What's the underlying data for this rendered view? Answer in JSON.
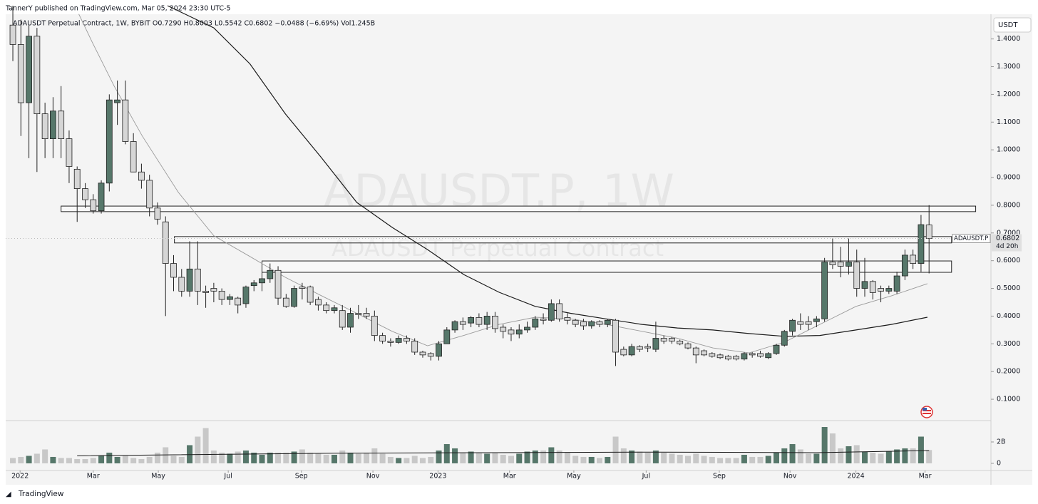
{
  "chart_data": {
    "type": "candlestick",
    "header": "TannerY published on TradingView.com, Mar 05, 2024 23:30 UTC-5",
    "legend_text": "ADAUSDT Perpetual Contract, 1W, BYBIT  O0.7290  H0.8003  L0.5542  C0.6802  −0.0488 (−6.69%)  Vol1.245B",
    "watermark": "ADAUSDT.P, 1W",
    "watermark_subtitle": "ADAUSDT Perpetual Contract",
    "currency": "USDT",
    "symbol_label": "ADAUSDT.P",
    "last_price_label": "0.6802",
    "countdown": "4d 20h",
    "footer": "TradingView",
    "up_color": "#56776a",
    "down_color": "#d6d6d6",
    "xlim": [
      -0.89,
      121.7
    ],
    "xticks": [
      {
        "value": 0.9,
        "label": "2022"
      },
      {
        "value": 10.0,
        "label": "Mar"
      },
      {
        "value": 18.1,
        "label": "May"
      },
      {
        "value": 26.8,
        "label": "Jul"
      },
      {
        "value": 35.9,
        "label": "Sep"
      },
      {
        "value": 44.8,
        "label": "Nov"
      },
      {
        "value": 52.9,
        "label": "2023"
      },
      {
        "value": 61.8,
        "label": "Mar"
      },
      {
        "value": 69.8,
        "label": "May"
      },
      {
        "value": 78.8,
        "label": "Jul"
      },
      {
        "value": 87.9,
        "label": "Sep"
      },
      {
        "value": 96.7,
        "label": "Nov"
      },
      {
        "value": 104.9,
        "label": "2024"
      },
      {
        "value": 113.5,
        "label": "Mar"
      }
    ],
    "ylim": [
      0.023,
      1.52
    ],
    "yticks": [
      {
        "value": 0.1,
        "label": "0.1000"
      },
      {
        "value": 0.2,
        "label": "0.2000"
      },
      {
        "value": 0.3,
        "label": "0.3000"
      },
      {
        "value": 0.4,
        "label": "0.4000"
      },
      {
        "value": 0.5,
        "label": "0.5000"
      },
      {
        "value": 0.6,
        "label": "0.6000"
      },
      {
        "value": 0.7,
        "label": "0.7000"
      },
      {
        "value": 0.8,
        "label": "0.8000"
      },
      {
        "value": 0.9,
        "label": "0.9000"
      },
      {
        "value": 1.0,
        "label": "1.0000"
      },
      {
        "value": 1.1,
        "label": "1.1000"
      },
      {
        "value": 1.2,
        "label": "1.2000"
      },
      {
        "value": 1.3,
        "label": "1.3000"
      },
      {
        "value": 1.4,
        "label": "1.4000"
      }
    ],
    "vlim": [
      -0.67,
      4
    ],
    "vticks": [
      0,
      {
        "value": 2,
        "label": "2B"
      }
    ],
    "open": [
      1.45,
      1.38,
      1.17,
      1.41,
      1.13,
      1.04,
      1.14,
      1.04,
      0.93,
      0.86,
      0.82,
      0.78,
      0.88,
      1.17,
      1.18,
      1.03,
      0.92,
      0.89,
      0.79,
      0.74,
      0.59,
      0.54,
      0.49,
      0.57,
      0.49,
      0.5,
      0.49,
      0.46,
      0.465,
      0.445,
      0.51,
      0.52,
      0.535,
      0.565,
      0.465,
      0.435,
      0.505,
      0.505,
      0.46,
      0.44,
      0.42,
      0.42,
      0.36,
      0.41,
      0.41,
      0.4,
      0.33,
      0.31,
      0.305,
      0.32,
      0.31,
      0.27,
      0.265,
      0.255,
      0.3,
      0.35,
      0.38,
      0.375,
      0.395,
      0.37,
      0.4,
      0.36,
      0.35,
      0.335,
      0.35,
      0.36,
      0.39,
      0.385,
      0.445,
      0.395,
      0.385,
      0.38,
      0.365,
      0.38,
      0.37,
      0.385,
      0.28,
      0.26,
      0.29,
      0.29,
      0.28,
      0.32,
      0.32,
      0.31,
      0.3,
      0.285,
      0.275,
      0.265,
      0.26,
      0.255,
      0.255,
      0.245,
      0.265,
      0.265,
      0.25,
      0.265,
      0.295,
      0.345,
      0.38,
      0.38,
      0.38,
      0.39,
      0.595,
      0.595,
      0.58,
      0.595,
      0.5,
      0.525,
      0.5,
      0.49,
      0.49,
      0.545,
      0.62,
      0.59,
      0.729
    ],
    "high": [
      1.52,
      1.47,
      1.45,
      1.44,
      1.17,
      1.19,
      1.23,
      1.07,
      0.94,
      0.88,
      0.84,
      0.89,
      1.2,
      1.25,
      1.25,
      1.06,
      0.95,
      0.91,
      0.81,
      0.76,
      0.62,
      0.57,
      0.67,
      0.67,
      0.51,
      0.52,
      0.5,
      0.48,
      0.47,
      0.51,
      0.53,
      0.56,
      0.59,
      0.58,
      0.48,
      0.51,
      0.52,
      0.51,
      0.47,
      0.45,
      0.44,
      0.44,
      0.43,
      0.44,
      0.43,
      0.42,
      0.34,
      0.32,
      0.33,
      0.33,
      0.32,
      0.275,
      0.27,
      0.31,
      0.36,
      0.385,
      0.395,
      0.4,
      0.41,
      0.415,
      0.415,
      0.37,
      0.36,
      0.37,
      0.38,
      0.4,
      0.41,
      0.46,
      0.46,
      0.41,
      0.39,
      0.39,
      0.385,
      0.385,
      0.39,
      0.39,
      0.29,
      0.3,
      0.295,
      0.3,
      0.38,
      0.33,
      0.325,
      0.315,
      0.305,
      0.29,
      0.28,
      0.27,
      0.265,
      0.26,
      0.26,
      0.27,
      0.27,
      0.275,
      0.27,
      0.3,
      0.35,
      0.39,
      0.41,
      0.4,
      0.4,
      0.61,
      0.68,
      0.65,
      0.68,
      0.64,
      0.61,
      0.53,
      0.51,
      0.51,
      0.56,
      0.64,
      0.64,
      0.765,
      0.8003
    ],
    "low": [
      1.32,
      1.05,
      0.97,
      0.92,
      0.97,
      0.97,
      0.97,
      0.88,
      0.74,
      0.79,
      0.77,
      0.77,
      0.85,
      1.09,
      1.02,
      0.92,
      0.86,
      0.76,
      0.73,
      0.4,
      0.49,
      0.47,
      0.47,
      0.44,
      0.43,
      0.45,
      0.44,
      0.44,
      0.41,
      0.43,
      0.49,
      0.49,
      0.52,
      0.44,
      0.43,
      0.43,
      0.46,
      0.44,
      0.42,
      0.41,
      0.41,
      0.35,
      0.34,
      0.39,
      0.39,
      0.31,
      0.3,
      0.29,
      0.3,
      0.3,
      0.26,
      0.25,
      0.24,
      0.24,
      0.3,
      0.34,
      0.35,
      0.36,
      0.36,
      0.35,
      0.34,
      0.32,
      0.31,
      0.32,
      0.34,
      0.35,
      0.37,
      0.38,
      0.38,
      0.37,
      0.36,
      0.35,
      0.355,
      0.36,
      0.36,
      0.22,
      0.255,
      0.255,
      0.27,
      0.27,
      0.27,
      0.3,
      0.3,
      0.295,
      0.28,
      0.23,
      0.255,
      0.25,
      0.245,
      0.24,
      0.24,
      0.24,
      0.25,
      0.25,
      0.245,
      0.26,
      0.29,
      0.33,
      0.35,
      0.35,
      0.36,
      0.38,
      0.57,
      0.54,
      0.55,
      0.47,
      0.47,
      0.46,
      0.45,
      0.48,
      0.48,
      0.53,
      0.57,
      0.56,
      0.5542
    ],
    "close": [
      1.38,
      1.17,
      1.41,
      1.13,
      1.04,
      1.14,
      1.04,
      0.94,
      0.86,
      0.82,
      0.78,
      0.88,
      1.18,
      1.18,
      1.03,
      0.92,
      0.89,
      0.79,
      0.75,
      0.59,
      0.54,
      0.49,
      0.57,
      0.49,
      0.485,
      0.49,
      0.46,
      0.47,
      0.44,
      0.505,
      0.52,
      0.535,
      0.565,
      0.465,
      0.435,
      0.5,
      0.5,
      0.45,
      0.44,
      0.42,
      0.43,
      0.36,
      0.41,
      0.405,
      0.4,
      0.33,
      0.31,
      0.305,
      0.32,
      0.31,
      0.27,
      0.26,
      0.255,
      0.3,
      0.35,
      0.38,
      0.37,
      0.395,
      0.37,
      0.4,
      0.355,
      0.345,
      0.335,
      0.35,
      0.36,
      0.39,
      0.385,
      0.445,
      0.39,
      0.385,
      0.37,
      0.365,
      0.38,
      0.37,
      0.385,
      0.27,
      0.26,
      0.29,
      0.28,
      0.285,
      0.32,
      0.31,
      0.31,
      0.3,
      0.285,
      0.26,
      0.26,
      0.255,
      0.25,
      0.245,
      0.245,
      0.265,
      0.26,
      0.255,
      0.265,
      0.295,
      0.345,
      0.385,
      0.37,
      0.37,
      0.39,
      0.595,
      0.585,
      0.58,
      0.595,
      0.5,
      0.525,
      0.485,
      0.49,
      0.5,
      0.545,
      0.62,
      0.59,
      0.73,
      0.6802
    ],
    "volume": [
      0.5,
      0.6,
      0.7,
      0.9,
      1.3,
      0.6,
      0.5,
      0.5,
      0.4,
      0.4,
      0.5,
      0.7,
      1.0,
      0.6,
      0.7,
      0.5,
      0.4,
      0.6,
      1.0,
      1.5,
      0.7,
      0.6,
      1.7,
      2.5,
      3.3,
      1.2,
      1.0,
      0.9,
      1.1,
      1.2,
      1.0,
      0.8,
      1.0,
      1.0,
      1.0,
      1.1,
      1.3,
      1.0,
      0.9,
      0.8,
      0.8,
      1.2,
      1.0,
      0.9,
      1.0,
      1.4,
      0.9,
      0.6,
      0.5,
      0.5,
      0.7,
      0.5,
      0.6,
      1.2,
      1.8,
      1.4,
      1.0,
      1.1,
      1.0,
      0.9,
      1.0,
      0.8,
      0.7,
      0.9,
      1.1,
      1.2,
      1.2,
      1.5,
      1.2,
      1.0,
      0.7,
      0.6,
      0.6,
      0.5,
      0.6,
      2.5,
      1.4,
      1.2,
      1.1,
      1.0,
      1.2,
      1.0,
      0.9,
      0.8,
      0.7,
      0.9,
      0.7,
      0.6,
      0.5,
      0.5,
      0.5,
      0.8,
      0.6,
      0.6,
      0.7,
      1.0,
      1.4,
      1.8,
      1.3,
      0.9,
      0.9,
      3.4,
      2.8,
      1.4,
      1.6,
      1.7,
      1.1,
      1.0,
      0.9,
      1.1,
      1.3,
      1.4,
      1.4,
      2.5,
      1.245
    ],
    "moving_averages": [
      {
        "color": "#1a1a1a",
        "x": [
          19.25,
          25.0,
          29.5,
          33.9,
          38.3,
          42.8,
          47.2,
          51.6,
          56.1,
          60.5,
          65.0,
          69.4,
          73.8,
          78.3,
          82.7,
          87.1,
          91.6,
          96.0,
          100.4,
          104.9,
          109.3,
          113.8
        ],
        "values": [
          1.52,
          1.44,
          1.31,
          1.13,
          0.975,
          0.81,
          0.72,
          0.64,
          0.55,
          0.486,
          0.435,
          0.41,
          0.39,
          0.37,
          0.357,
          0.35,
          0.337,
          0.327,
          0.33,
          0.35,
          0.37,
          0.396
        ]
      },
      {
        "color": "#9a9a9a",
        "x": [
          8.2,
          9.9,
          12.6,
          16.1,
          20.6,
          25.0,
          29.5,
          33.9,
          38.3,
          42.8,
          47.2,
          51.6,
          56.1,
          60.5,
          65.0,
          69.4,
          73.8,
          78.3,
          82.7,
          87.1,
          91.6,
          96.0,
          100.4,
          104.9,
          109.3,
          113.8
        ],
        "values": [
          1.49,
          1.387,
          1.23,
          1.05,
          0.846,
          0.69,
          0.615,
          0.54,
          0.475,
          0.41,
          0.345,
          0.293,
          0.33,
          0.37,
          0.396,
          0.39,
          0.37,
          0.345,
          0.32,
          0.285,
          0.267,
          0.306,
          0.37,
          0.435,
          0.473,
          0.517
        ]
      }
    ],
    "volume_ma": {
      "color": "#1a1a1a",
      "x": [
        8,
        20,
        40,
        60,
        80,
        100,
        114
      ],
      "values": [
        0.7,
        0.8,
        0.95,
        1.0,
        1.05,
        1.0,
        1.2
      ]
    },
    "zones": [
      {
        "x": [
          6.0,
          119.8
        ],
        "y": [
          0.777,
          0.797
        ]
      },
      {
        "x": [
          20.1,
          116.8
        ],
        "y": [
          0.664,
          0.687
        ]
      },
      {
        "x": [
          31.0,
          116.8
        ],
        "y": [
          0.558,
          0.599
        ]
      }
    ]
  }
}
